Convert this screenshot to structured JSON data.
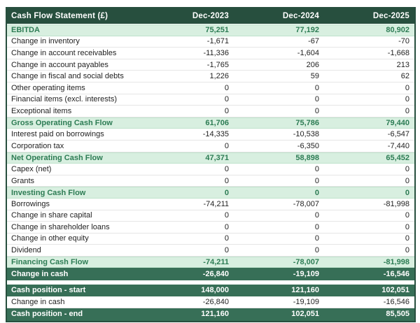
{
  "chart_data": {
    "type": "table",
    "title": "Cash Flow Statement (£)",
    "columns": [
      "Dec-2023",
      "Dec-2024",
      "Dec-2025"
    ],
    "rows": [
      {
        "label": "EBITDA",
        "values": [
          "75,251",
          "77,192",
          "80,902"
        ],
        "style": "subtotal"
      },
      {
        "label": "Change in inventory",
        "values": [
          "-1,671",
          "-67",
          "-70"
        ],
        "style": "normal"
      },
      {
        "label": "Change in account receivables",
        "values": [
          "-11,336",
          "-1,604",
          "-1,668"
        ],
        "style": "normal"
      },
      {
        "label": "Change in account payables",
        "values": [
          "-1,765",
          "206",
          "213"
        ],
        "style": "normal"
      },
      {
        "label": "Change in fiscal and social debts",
        "values": [
          "1,226",
          "59",
          "62"
        ],
        "style": "normal"
      },
      {
        "label": "Other operating items",
        "values": [
          "0",
          "0",
          "0"
        ],
        "style": "normal"
      },
      {
        "label": "Financial items (excl. interests)",
        "values": [
          "0",
          "0",
          "0"
        ],
        "style": "normal"
      },
      {
        "label": "Exceptional items",
        "values": [
          "0",
          "0",
          "0"
        ],
        "style": "normal"
      },
      {
        "label": "Gross Operating Cash Flow",
        "values": [
          "61,706",
          "75,786",
          "79,440"
        ],
        "style": "subtotal"
      },
      {
        "label": "Interest paid on borrowings",
        "values": [
          "-14,335",
          "-10,538",
          "-6,547"
        ],
        "style": "normal"
      },
      {
        "label": "Corporation tax",
        "values": [
          "0",
          "-6,350",
          "-7,440"
        ],
        "style": "normal"
      },
      {
        "label": "Net Operating Cash Flow",
        "values": [
          "47,371",
          "58,898",
          "65,452"
        ],
        "style": "subtotal"
      },
      {
        "label": "Capex (net)",
        "values": [
          "0",
          "0",
          "0"
        ],
        "style": "normal"
      },
      {
        "label": "Grants",
        "values": [
          "0",
          "0",
          "0"
        ],
        "style": "normal"
      },
      {
        "label": "Investing Cash Flow",
        "values": [
          "0",
          "0",
          "0"
        ],
        "style": "subtotal"
      },
      {
        "label": "Borrowings",
        "values": [
          "-74,211",
          "-78,007",
          "-81,998"
        ],
        "style": "normal"
      },
      {
        "label": "Change in share capital",
        "values": [
          "0",
          "0",
          "0"
        ],
        "style": "normal"
      },
      {
        "label": "Change in shareholder loans",
        "values": [
          "0",
          "0",
          "0"
        ],
        "style": "normal"
      },
      {
        "label": "Change in other equity",
        "values": [
          "0",
          "0",
          "0"
        ],
        "style": "normal"
      },
      {
        "label": "Dividend",
        "values": [
          "0",
          "0",
          "0"
        ],
        "style": "normal"
      },
      {
        "label": "Financing Cash Flow",
        "values": [
          "-74,211",
          "-78,007",
          "-81,998"
        ],
        "style": "subtotal"
      },
      {
        "label": "Change in cash",
        "values": [
          "-26,840",
          "-19,109",
          "-16,546"
        ],
        "style": "dark"
      },
      {
        "label": "Cash position - start",
        "values": [
          "148,000",
          "121,160",
          "102,051"
        ],
        "style": "dark",
        "gap_before": true
      },
      {
        "label": "Change in cash",
        "values": [
          "-26,840",
          "-19,109",
          "-16,546"
        ],
        "style": "normal"
      },
      {
        "label": "Cash position - end",
        "values": [
          "121,160",
          "102,051",
          "85,505"
        ],
        "style": "dark"
      }
    ]
  },
  "colors": {
    "header_bg": "#274f3e",
    "total_row_bg": "#376f57",
    "highlight_row_bg": "#d8efe0",
    "highlight_text": "#2d7c54",
    "body_text": "#222222",
    "row_border": "#e6e6e6"
  }
}
